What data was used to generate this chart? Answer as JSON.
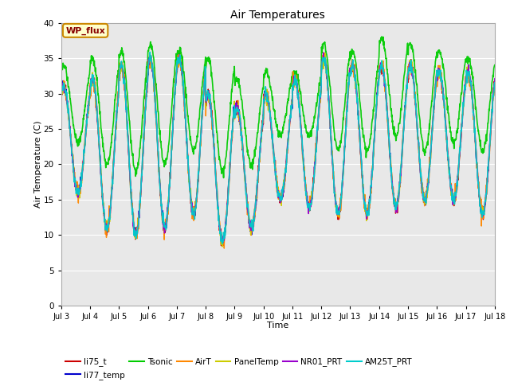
{
  "title": "Air Temperatures",
  "xlabel": "Time",
  "ylabel": "Air Temperature (C)",
  "ylim": [
    0,
    40
  ],
  "yticks": [
    0,
    5,
    10,
    15,
    20,
    25,
    30,
    35,
    40
  ],
  "xlim_days": [
    3,
    18
  ],
  "xtick_labels": [
    "Jul 3",
    "Jul 4",
    "Jul 5",
    "Jul 6",
    "Jul 7",
    "Jul 8",
    "Jul 9",
    "Jul 10",
    "Jul 11",
    "Jul 12",
    "Jul 13",
    "Jul 14",
    "Jul 15",
    "Jul 16",
    "Jul 17",
    "Jul 18"
  ],
  "xtick_positions": [
    3,
    4,
    5,
    6,
    7,
    8,
    9,
    10,
    11,
    12,
    13,
    14,
    15,
    16,
    17,
    18
  ],
  "series": {
    "li75_t": {
      "color": "#cc0000",
      "lw": 1.0
    },
    "li77_temp": {
      "color": "#0000cc",
      "lw": 1.0
    },
    "Tsonic": {
      "color": "#00cc00",
      "lw": 1.2
    },
    "AirT": {
      "color": "#ff8800",
      "lw": 1.0
    },
    "PanelTemp": {
      "color": "#cccc00",
      "lw": 1.0
    },
    "NR01_PRT": {
      "color": "#9900cc",
      "lw": 1.0
    },
    "AM25T_PRT": {
      "color": "#00cccc",
      "lw": 1.2
    }
  },
  "legend_label_box": "WP_flux",
  "legend_box_facecolor": "#ffffcc",
  "legend_box_edgecolor": "#cc8800",
  "legend_box_textcolor": "#880000",
  "plot_bg_color": "#e8e8e8",
  "grid_color": "#ffffff",
  "tsonic_daily_max": [
    34,
    35,
    36,
    37,
    36,
    35,
    32,
    33,
    33,
    37,
    36,
    38,
    37,
    36,
    35
  ],
  "tsonic_daily_min": [
    23,
    20,
    19,
    20,
    22,
    19,
    20,
    24,
    24,
    22,
    22,
    24,
    22,
    23,
    22
  ],
  "other_daily_max": [
    31,
    32,
    34,
    35,
    35,
    30,
    28,
    30,
    32,
    35,
    34,
    34,
    34,
    33,
    33
  ],
  "other_daily_min": [
    16,
    11,
    10,
    11,
    13,
    9,
    11,
    15,
    14,
    13,
    13,
    14,
    15,
    15,
    13
  ]
}
